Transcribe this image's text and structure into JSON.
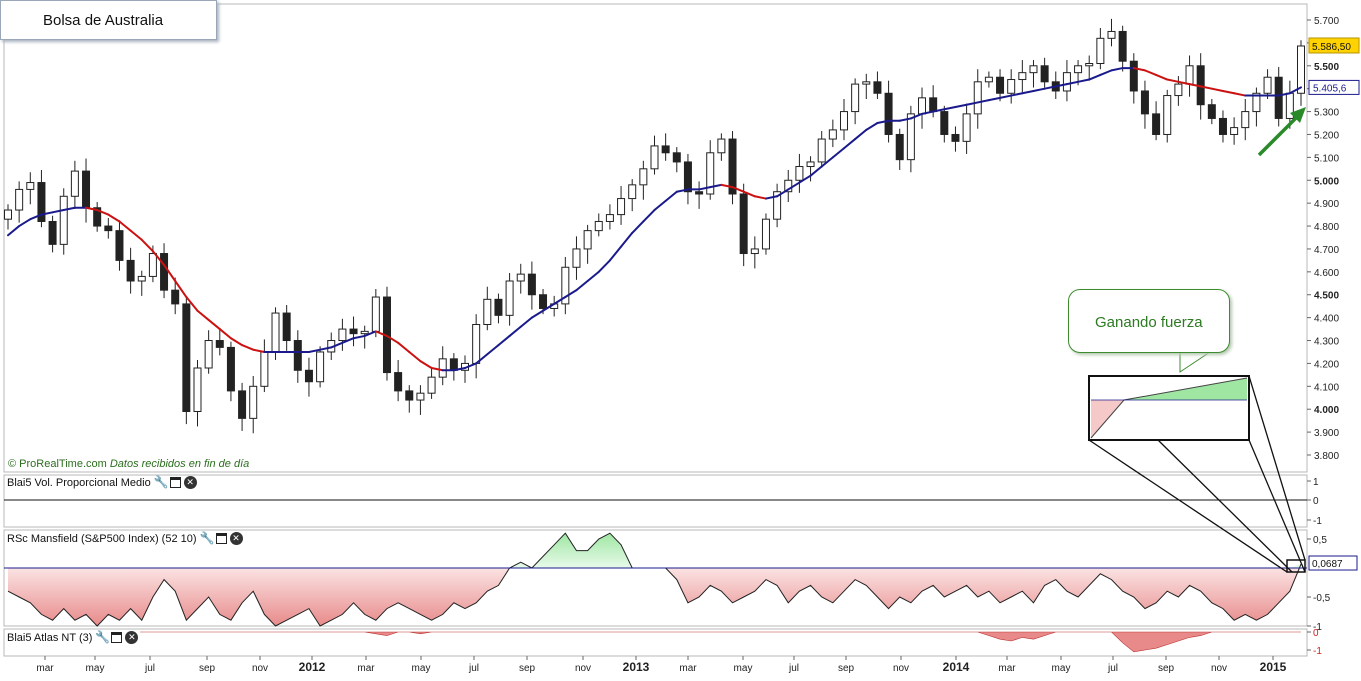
{
  "chart_title": "Bolsa de Australia",
  "callout": "Ganando fuerza",
  "credit": {
    "source": "© ProRealTime.com",
    "note": "Datos recibidos en fin de día"
  },
  "colors": {
    "ma_up": "#1a1a8c",
    "ma_down": "#cc1111",
    "positive_fill": "#9fe6a3",
    "negative_fill": "#e88a8a",
    "arrow": "#2a8a2a",
    "last_price_bg": "#ffd200"
  },
  "panels": [
    {
      "name": "Blai5 Vol. Proporcional Medio",
      "ticks": [
        "1",
        "0",
        "-1"
      ]
    },
    {
      "name": "RSc Mansfield (S&P500 Index) (52 10)",
      "ticks": [
        "0,5",
        "-0,5",
        "-1"
      ],
      "last_label": "0,0687",
      "last_value": 0.0687
    },
    {
      "name": "Blai5 Atlas NT (3)",
      "ticks": [
        "0",
        "-1"
      ]
    }
  ],
  "chart_data": {
    "type": "candlestick",
    "x_labels": [
      "mar",
      "may",
      "jul",
      "sep",
      "nov",
      "2012",
      "mar",
      "may",
      "jul",
      "sep",
      "nov",
      "2013",
      "mar",
      "may",
      "jul",
      "sep",
      "nov",
      "2014",
      "mar",
      "may",
      "jul",
      "sep",
      "nov",
      "2015"
    ],
    "y_ticks": [
      "5.700",
      "5.600",
      "5.500",
      "5.400",
      "5.300",
      "5.200",
      "5.100",
      "5.000",
      "4.900",
      "4.800",
      "4.700",
      "4.600",
      "4.500",
      "4.400",
      "4.300",
      "4.200",
      "4.100",
      "4.000",
      "3.900",
      "3.800"
    ],
    "ylim": [
      3750,
      5760
    ],
    "last_price_label": "5.586,50",
    "ma_label": "5.405,6",
    "closes": [
      4870,
      4960,
      4990,
      4820,
      4720,
      4930,
      5040,
      4880,
      4800,
      4780,
      4650,
      4560,
      4580,
      4680,
      4520,
      4460,
      3990,
      4180,
      4300,
      4270,
      4080,
      3960,
      4100,
      4250,
      4420,
      4300,
      4170,
      4120,
      4250,
      4300,
      4350,
      4330,
      4340,
      4490,
      4160,
      4080,
      4040,
      4070,
      4140,
      4220,
      4170,
      4200,
      4370,
      4480,
      4410,
      4560,
      4590,
      4500,
      4440,
      4460,
      4620,
      4700,
      4780,
      4820,
      4850,
      4920,
      4980,
      5050,
      5150,
      5120,
      5080,
      4950,
      4940,
      5120,
      5180,
      4940,
      4680,
      4700,
      4830,
      4950,
      5000,
      5060,
      5080,
      5180,
      5220,
      5300,
      5420,
      5430,
      5380,
      5200,
      5090,
      5290,
      5360,
      5300,
      5200,
      5170,
      5290,
      5430,
      5450,
      5380,
      5440,
      5470,
      5500,
      5430,
      5390,
      5470,
      5500,
      5510,
      5620,
      5650,
      5520,
      5390,
      5290,
      5200,
      5370,
      5420,
      5500,
      5330,
      5270,
      5200,
      5230,
      5300,
      5380,
      5450,
      5270,
      5380,
      5586.5
    ],
    "ma": [
      4760,
      4800,
      4830,
      4850,
      4860,
      4870,
      4880,
      4880,
      4870,
      4850,
      4820,
      4780,
      4740,
      4690,
      4630,
      4560,
      4490,
      4430,
      4390,
      4350,
      4310,
      4280,
      4260,
      4250,
      4250,
      4250,
      4250,
      4250,
      4260,
      4270,
      4290,
      4310,
      4320,
      4340,
      4320,
      4290,
      4250,
      4210,
      4180,
      4170,
      4170,
      4180,
      4200,
      4240,
      4280,
      4320,
      4360,
      4400,
      4430,
      4460,
      4490,
      4520,
      4560,
      4600,
      4650,
      4710,
      4770,
      4820,
      4870,
      4910,
      4950,
      4960,
      4960,
      4970,
      4980,
      4970,
      4950,
      4930,
      4920,
      4930,
      4960,
      4990,
      5020,
      5060,
      5100,
      5140,
      5180,
      5220,
      5250,
      5260,
      5260,
      5270,
      5290,
      5300,
      5310,
      5320,
      5330,
      5340,
      5350,
      5360,
      5370,
      5380,
      5390,
      5400,
      5410,
      5420,
      5430,
      5440,
      5460,
      5480,
      5490,
      5490,
      5480,
      5460,
      5440,
      5430,
      5420,
      5410,
      5400,
      5390,
      5380,
      5370,
      5370,
      5370,
      5370,
      5380,
      5405.6
    ],
    "rsc_mansfield": [
      -0.4,
      -0.5,
      -0.6,
      -0.8,
      -0.9,
      -0.7,
      -0.9,
      -0.8,
      -1.0,
      -0.8,
      -0.9,
      -0.7,
      -0.9,
      -0.5,
      -0.2,
      -0.4,
      -0.9,
      -0.7,
      -0.5,
      -0.8,
      -0.9,
      -0.6,
      -0.4,
      -0.8,
      -1.0,
      -0.9,
      -0.8,
      -0.7,
      -1.0,
      -0.9,
      -0.8,
      -0.6,
      -0.8,
      -0.9,
      -0.7,
      -0.6,
      -0.7,
      -0.8,
      -0.9,
      -0.8,
      -0.6,
      -0.7,
      -0.6,
      -0.4,
      -0.3,
      0.0,
      0.1,
      0.0,
      0.2,
      0.4,
      0.6,
      0.3,
      0.3,
      0.5,
      0.6,
      0.4,
      0.0,
      0.0,
      0.0,
      0.0,
      -0.2,
      -0.6,
      -0.5,
      -0.3,
      -0.4,
      -0.6,
      -0.5,
      -0.4,
      -0.2,
      -0.3,
      -0.6,
      -0.4,
      -0.3,
      -0.5,
      -0.6,
      -0.4,
      -0.2,
      -0.3,
      -0.5,
      -0.7,
      -0.5,
      -0.6,
      -0.4,
      -0.3,
      -0.5,
      -0.4,
      -0.3,
      -0.5,
      -0.4,
      -0.6,
      -0.5,
      -0.4,
      -0.6,
      -0.3,
      -0.2,
      -0.4,
      -0.5,
      -0.3,
      -0.1,
      -0.2,
      -0.4,
      -0.5,
      -0.7,
      -0.6,
      -0.4,
      -0.5,
      -0.3,
      -0.4,
      -0.6,
      -0.7,
      -0.9,
      -0.8,
      -0.9,
      -0.8,
      -0.6,
      -0.4,
      0.0687
    ],
    "atlas_nt": [
      0,
      0,
      0,
      0,
      0,
      0,
      0,
      0,
      0,
      0,
      0,
      0,
      0,
      0,
      0,
      0,
      0,
      0,
      0,
      0,
      0,
      0,
      0,
      0,
      0,
      0,
      0,
      0,
      0,
      0,
      0,
      0,
      0,
      -0.1,
      -0.2,
      0,
      0,
      -0.1,
      0,
      0,
      0,
      0,
      0,
      0,
      0,
      0,
      0,
      0,
      0,
      0,
      0,
      0,
      0,
      0,
      0,
      0,
      0,
      0,
      0,
      0,
      0,
      0,
      0,
      0,
      0,
      0,
      0,
      0,
      0,
      0,
      0,
      0,
      0,
      0,
      0,
      0,
      0,
      0,
      0,
      0,
      0,
      0,
      0,
      0,
      0,
      0,
      0,
      0,
      -0.2,
      -0.4,
      -0.5,
      -0.3,
      -0.4,
      -0.2,
      0,
      0,
      0,
      0,
      0,
      0,
      -0.6,
      -1.1,
      -1.0,
      -0.9,
      -0.7,
      -0.5,
      -0.3,
      -0.2,
      0,
      0,
      0,
      0,
      0,
      0,
      0,
      0,
      0
    ]
  }
}
